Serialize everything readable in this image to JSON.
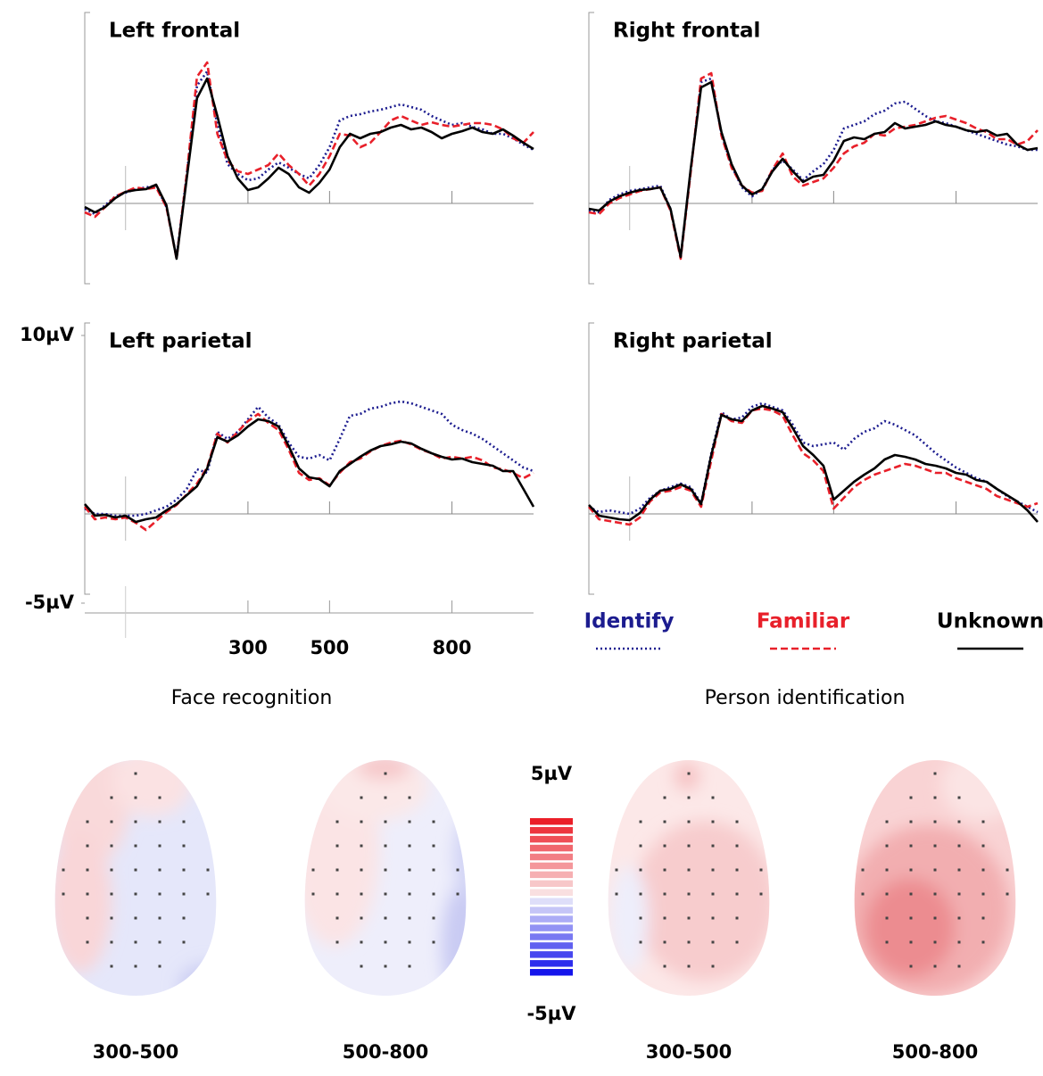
{
  "chart_data": [
    {
      "type": "line",
      "title": "Left frontal",
      "x": [
        -100,
        -75,
        -50,
        -25,
        0,
        25,
        50,
        75,
        100,
        125,
        150,
        175,
        200,
        225,
        250,
        275,
        300,
        325,
        350,
        375,
        400,
        425,
        450,
        475,
        500,
        525,
        550,
        575,
        600,
        625,
        650,
        675,
        700,
        725,
        750,
        775,
        800,
        825,
        850,
        875,
        900,
        925,
        950,
        975,
        1000
      ],
      "xlim": [
        -100,
        1000
      ],
      "xticks": [
        300,
        500,
        800
      ],
      "ylim": [
        -5,
        10
      ],
      "series": [
        {
          "name": "Identify",
          "color": "#1c1c8f",
          "dash": "dotted",
          "values": [
            -0.3,
            -0.6,
            -0.1,
            0.4,
            0.6,
            0.8,
            0.9,
            1.0,
            -0.2,
            -3.0,
            1.6,
            6.6,
            7.4,
            4.4,
            2.2,
            1.65,
            1.3,
            1.4,
            1.9,
            2.3,
            2.0,
            1.65,
            1.4,
            2.15,
            3.15,
            4.65,
            4.9,
            5.0,
            5.15,
            5.25,
            5.4,
            5.55,
            5.4,
            5.25,
            4.9,
            4.65,
            4.4,
            4.5,
            4.3,
            4.15,
            3.9,
            3.9,
            3.65,
            3.3,
            3.0
          ]
        },
        {
          "name": "Familiar",
          "color": "#e8202a",
          "dash": "dashed",
          "values": [
            -0.5,
            -0.75,
            -0.2,
            0.4,
            0.65,
            0.9,
            0.8,
            0.9,
            -0.2,
            -3.1,
            1.65,
            7.1,
            7.9,
            3.9,
            2.4,
            1.8,
            1.65,
            1.9,
            2.15,
            2.8,
            2.15,
            1.65,
            1.0,
            1.65,
            2.65,
            3.9,
            3.8,
            3.15,
            3.4,
            4.0,
            4.65,
            4.9,
            4.65,
            4.4,
            4.55,
            4.4,
            4.3,
            4.4,
            4.5,
            4.5,
            4.4,
            4.15,
            3.65,
            3.4,
            4.0
          ]
        },
        {
          "name": "Unknown",
          "color": "#000000",
          "dash": "solid",
          "values": [
            -0.2,
            -0.5,
            -0.2,
            0.3,
            0.65,
            0.75,
            0.8,
            1.05,
            -0.1,
            -3.1,
            1.4,
            5.9,
            7.0,
            4.9,
            2.65,
            1.4,
            0.75,
            0.9,
            1.4,
            2.0,
            1.65,
            0.9,
            0.6,
            1.15,
            1.9,
            3.15,
            3.9,
            3.65,
            3.9,
            4.0,
            4.25,
            4.4,
            4.15,
            4.25,
            4.0,
            3.65,
            3.9,
            4.05,
            4.25,
            4.0,
            3.9,
            4.15,
            3.8,
            3.4,
            3.05
          ]
        }
      ]
    },
    {
      "type": "line",
      "title": "Right frontal",
      "x": [
        -100,
        -75,
        -50,
        -25,
        0,
        25,
        50,
        75,
        100,
        125,
        150,
        175,
        200,
        225,
        250,
        275,
        300,
        325,
        350,
        375,
        400,
        425,
        450,
        475,
        500,
        525,
        550,
        575,
        600,
        625,
        650,
        675,
        700,
        725,
        750,
        775,
        800,
        825,
        850,
        875,
        900,
        925,
        950,
        975,
        1000
      ],
      "xlim": [
        -100,
        1000
      ],
      "xticks": [
        300,
        500,
        800
      ],
      "ylim": [
        -5,
        10
      ],
      "series": [
        {
          "name": "Identify",
          "color": "#1c1c8f",
          "dash": "dotted",
          "values": [
            -0.4,
            -0.5,
            0.2,
            0.5,
            0.7,
            0.8,
            0.9,
            1.0,
            -0.3,
            -3.0,
            1.9,
            6.8,
            7.0,
            3.9,
            2.1,
            0.9,
            0.4,
            0.8,
            1.9,
            2.4,
            1.9,
            1.3,
            1.8,
            2.2,
            3.0,
            4.2,
            4.4,
            4.6,
            5.0,
            5.2,
            5.6,
            5.7,
            5.3,
            4.9,
            4.6,
            4.5,
            4.3,
            4.1,
            3.9,
            3.7,
            3.5,
            3.3,
            3.2,
            3.0,
            3.0
          ]
        },
        {
          "name": "Familiar",
          "color": "#e8202a",
          "dash": "dashed",
          "values": [
            -0.5,
            -0.6,
            0.0,
            0.3,
            0.5,
            0.7,
            0.8,
            0.9,
            -0.4,
            -3.1,
            1.8,
            7.0,
            7.3,
            3.8,
            2.0,
            1.0,
            0.6,
            0.7,
            1.9,
            2.8,
            1.5,
            1.0,
            1.2,
            1.4,
            2.0,
            2.8,
            3.2,
            3.4,
            3.9,
            3.8,
            4.2,
            4.3,
            4.4,
            4.6,
            4.8,
            4.9,
            4.7,
            4.5,
            4.2,
            4.0,
            3.6,
            3.6,
            3.3,
            3.5,
            4.1
          ]
        },
        {
          "name": "Unknown",
          "color": "#000000",
          "dash": "solid",
          "values": [
            -0.3,
            -0.4,
            0.1,
            0.4,
            0.6,
            0.75,
            0.8,
            0.9,
            -0.3,
            -3.0,
            2.0,
            6.5,
            6.8,
            4.0,
            2.2,
            1.0,
            0.5,
            0.8,
            1.8,
            2.5,
            1.8,
            1.2,
            1.5,
            1.6,
            2.4,
            3.5,
            3.7,
            3.6,
            3.9,
            4.0,
            4.5,
            4.2,
            4.3,
            4.4,
            4.6,
            4.4,
            4.3,
            4.1,
            4.0,
            4.1,
            3.8,
            3.9,
            3.3,
            3.0,
            3.1
          ]
        }
      ]
    },
    {
      "type": "line",
      "title": "Left parietal",
      "x": [
        -100,
        -75,
        -50,
        -25,
        0,
        25,
        50,
        75,
        100,
        125,
        150,
        175,
        200,
        225,
        250,
        275,
        300,
        325,
        350,
        375,
        400,
        425,
        450,
        475,
        500,
        525,
        550,
        575,
        600,
        625,
        650,
        675,
        700,
        725,
        750,
        775,
        800,
        825,
        850,
        875,
        900,
        925,
        950,
        975,
        1000
      ],
      "xlim": [
        -100,
        1000
      ],
      "xticks": [
        300,
        500,
        800
      ],
      "ylim": [
        -5,
        10
      ],
      "yticks": [
        {
          "value": 10,
          "label": "10µV"
        },
        {
          "value": -5,
          "label": "-5µV"
        }
      ],
      "series": [
        {
          "name": "Identify",
          "color": "#1c1c8f",
          "dash": "dotted",
          "values": [
            0.3,
            0.0,
            0.0,
            -0.1,
            -0.1,
            -0.1,
            0.0,
            0.2,
            0.4,
            0.8,
            1.4,
            2.5,
            2.3,
            4.6,
            4.2,
            4.6,
            5.3,
            6.0,
            5.4,
            5.0,
            4.0,
            3.2,
            3.1,
            3.3,
            3.0,
            4.2,
            5.5,
            5.6,
            5.9,
            6.0,
            6.2,
            6.3,
            6.2,
            6.0,
            5.8,
            5.6,
            5.0,
            4.7,
            4.5,
            4.2,
            3.8,
            3.4,
            3.0,
            2.6,
            2.4
          ]
        },
        {
          "name": "Familiar",
          "color": "#e8202a",
          "dash": "dashed",
          "values": [
            0.4,
            -0.3,
            -0.2,
            -0.3,
            -0.2,
            -0.5,
            -0.9,
            -0.4,
            0.1,
            0.5,
            1.1,
            1.7,
            2.6,
            4.5,
            4.0,
            4.6,
            5.2,
            5.6,
            5.1,
            4.7,
            3.6,
            2.3,
            1.9,
            2.0,
            1.6,
            2.3,
            2.9,
            3.1,
            3.5,
            3.8,
            4.0,
            4.1,
            3.9,
            3.6,
            3.4,
            3.1,
            3.2,
            3.1,
            3.2,
            3.0,
            2.6,
            2.5,
            2.3,
            2.0,
            2.3
          ]
        },
        {
          "name": "Unknown",
          "color": "#000000",
          "dash": "solid",
          "values": [
            0.55,
            -0.1,
            -0.05,
            -0.2,
            -0.1,
            -0.45,
            -0.3,
            -0.2,
            0.2,
            0.55,
            1.05,
            1.55,
            2.55,
            4.3,
            4.05,
            4.4,
            4.9,
            5.3,
            5.2,
            4.9,
            3.8,
            2.55,
            2.05,
            1.95,
            1.55,
            2.4,
            2.8,
            3.2,
            3.55,
            3.8,
            3.9,
            4.05,
            3.95,
            3.65,
            3.4,
            3.2,
            3.05,
            3.1,
            2.9,
            2.8,
            2.7,
            2.4,
            2.4,
            1.4,
            0.4
          ]
        }
      ]
    },
    {
      "type": "line",
      "title": "Right parietal",
      "x": [
        -100,
        -75,
        -50,
        -25,
        0,
        25,
        50,
        75,
        100,
        125,
        150,
        175,
        200,
        225,
        250,
        275,
        300,
        325,
        350,
        375,
        400,
        425,
        450,
        475,
        500,
        525,
        550,
        575,
        600,
        625,
        650,
        675,
        700,
        725,
        750,
        775,
        800,
        825,
        850,
        875,
        900,
        925,
        950,
        975,
        1000
      ],
      "xlim": [
        -100,
        1000
      ],
      "xticks": [
        300,
        500,
        800
      ],
      "ylim": [
        -5,
        10
      ],
      "series": [
        {
          "name": "Identify",
          "color": "#1c1c8f",
          "dash": "dotted",
          "values": [
            0.4,
            0.1,
            0.2,
            0.1,
            0.0,
            0.3,
            0.9,
            1.3,
            1.5,
            1.7,
            1.5,
            0.6,
            3.4,
            5.7,
            5.3,
            5.4,
            6.0,
            6.2,
            6.0,
            5.8,
            5.0,
            4.0,
            3.8,
            3.9,
            4.0,
            3.6,
            4.2,
            4.6,
            4.8,
            5.2,
            5.0,
            4.7,
            4.4,
            3.9,
            3.4,
            3.0,
            2.6,
            2.3,
            2.0,
            1.8,
            1.4,
            1.0,
            0.7,
            0.4,
            0.1
          ]
        },
        {
          "name": "Familiar",
          "color": "#e8202a",
          "dash": "dashed",
          "values": [
            0.4,
            -0.3,
            -0.4,
            -0.5,
            -0.6,
            -0.2,
            0.7,
            1.2,
            1.3,
            1.5,
            1.3,
            0.4,
            3.0,
            5.6,
            5.2,
            5.1,
            5.8,
            5.9,
            5.8,
            5.5,
            4.4,
            3.4,
            3.0,
            2.4,
            0.3,
            0.9,
            1.5,
            1.9,
            2.2,
            2.4,
            2.6,
            2.8,
            2.7,
            2.5,
            2.3,
            2.3,
            2.0,
            1.8,
            1.6,
            1.4,
            1.0,
            0.8,
            0.6,
            0.4,
            0.6
          ]
        },
        {
          "name": "Unknown",
          "color": "#000000",
          "dash": "solid",
          "values": [
            0.5,
            -0.1,
            -0.2,
            -0.3,
            -0.35,
            0.05,
            0.8,
            1.3,
            1.4,
            1.65,
            1.4,
            0.55,
            3.3,
            5.55,
            5.3,
            5.2,
            5.8,
            6.05,
            5.9,
            5.7,
            4.8,
            3.8,
            3.3,
            2.7,
            0.8,
            1.3,
            1.8,
            2.2,
            2.55,
            3.05,
            3.3,
            3.2,
            3.05,
            2.8,
            2.7,
            2.55,
            2.3,
            2.2,
            1.9,
            1.8,
            1.4,
            1.05,
            0.7,
            0.2,
            -0.45
          ]
        }
      ]
    }
  ],
  "group_labels": [
    "Face recognition",
    "Person identification"
  ],
  "topography": {
    "colorbar": {
      "lim": [
        -5,
        5
      ],
      "ticks": [
        {
          "value": 5,
          "label": "5µV"
        },
        {
          "value": -5,
          "label": "-5µV"
        }
      ]
    },
    "maps": [
      {
        "label": "300-500"
      },
      {
        "label": "500-800"
      },
      {
        "label": "300-500"
      },
      {
        "label": "500-800"
      }
    ]
  }
}
